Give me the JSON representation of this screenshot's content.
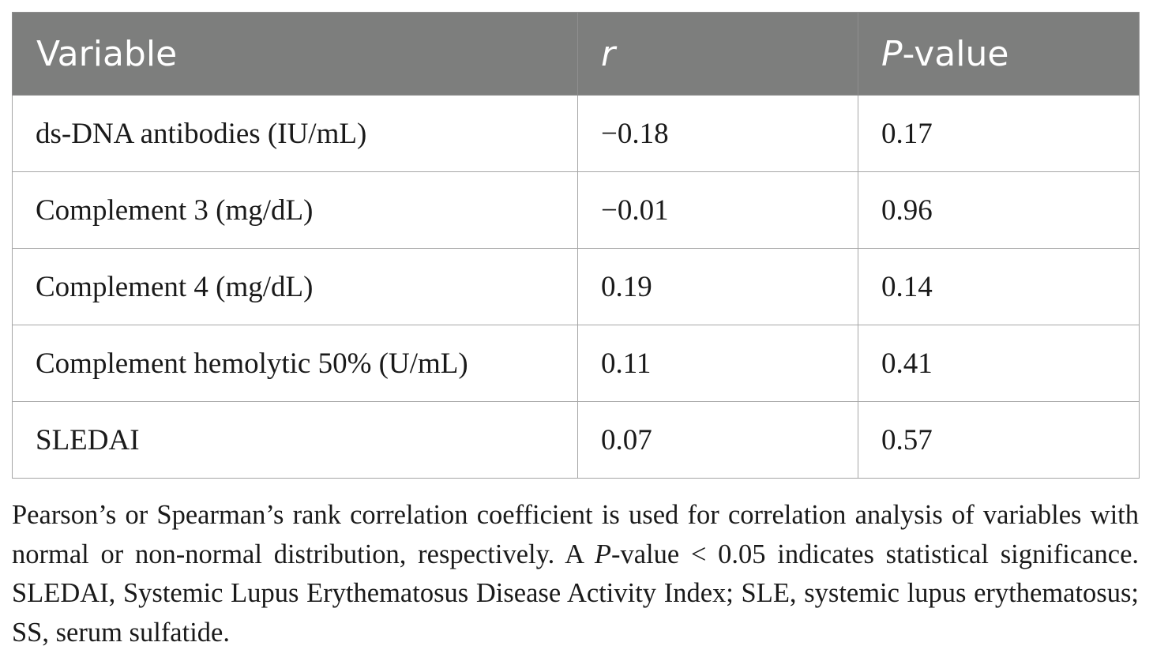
{
  "table": {
    "headers": {
      "variable": "Variable",
      "r": "r",
      "p_italic": "P",
      "p_rest": "-value"
    },
    "rows": [
      {
        "variable": "ds-DNA antibodies (IU/mL)",
        "r": "−0.18",
        "p": "0.17"
      },
      {
        "variable": "Complement 3 (mg/dL)",
        "r": "−0.01",
        "p": "0.96"
      },
      {
        "variable": "Complement 4 (mg/dL)",
        "r": "0.19",
        "p": "0.14"
      },
      {
        "variable": "Complement hemolytic 50% (U/mL)",
        "r": "0.11",
        "p": "0.41"
      },
      {
        "variable": "SLEDAI",
        "r": "0.07",
        "p": "0.57"
      }
    ]
  },
  "footnote": {
    "part1": "Pearson’s or Spearman’s rank correlation coefficient is used for correlation analysis of variables with normal or non-normal distribution, respectively. A ",
    "p_italic": "P",
    "part2": "-value < 0.05 indicates statistical significance. SLEDAI, Systemic Lupus Erythematosus Disease Activity Index; SLE, systemic lupus erythematosus; SS, serum sulfatide."
  }
}
